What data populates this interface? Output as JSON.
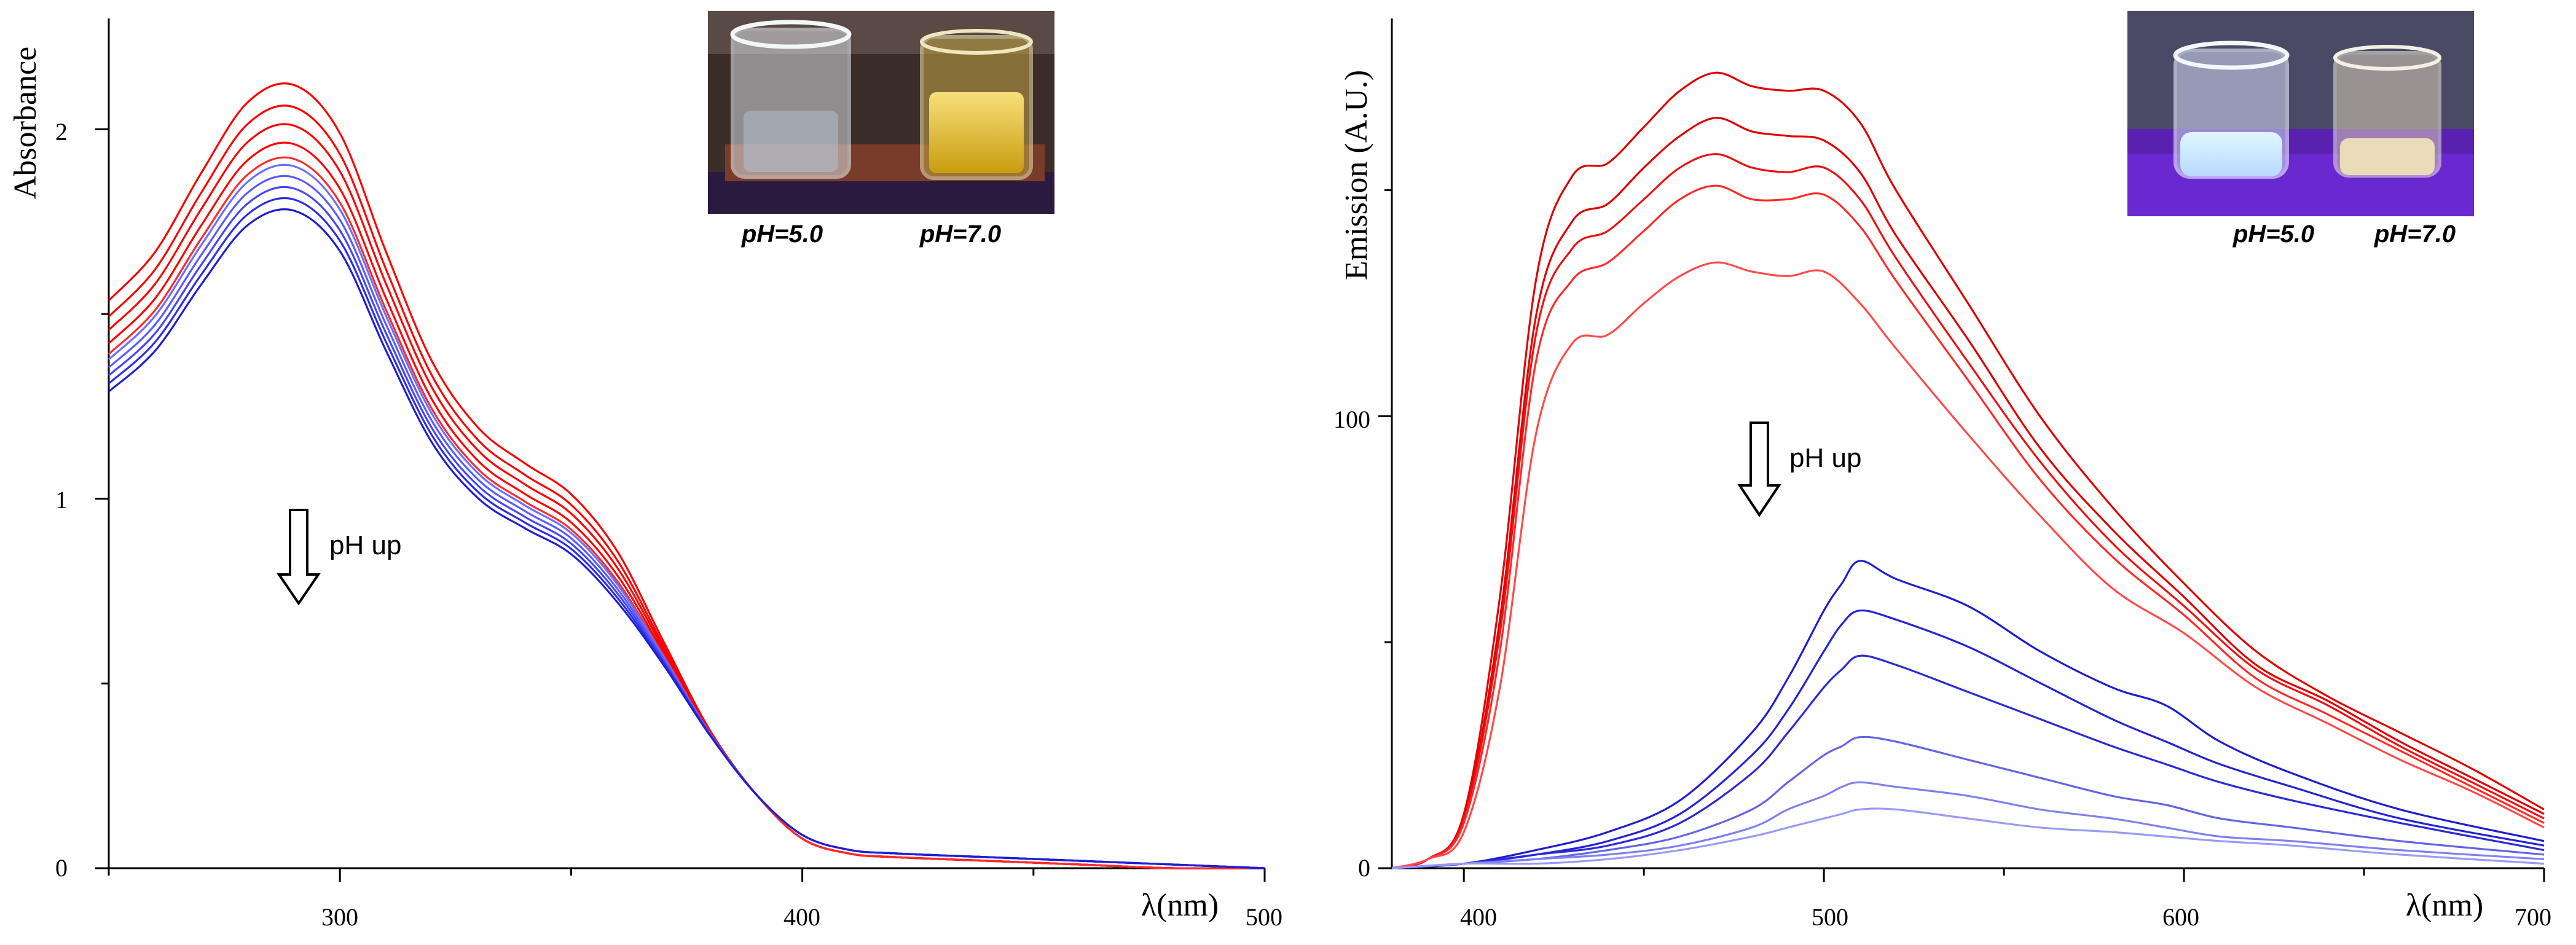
{
  "chart_data": [
    {
      "type": "line",
      "title": "",
      "xlabel": "λ(nm)",
      "ylabel": "Absorbance",
      "xlim": [
        250,
        500
      ],
      "ylim": [
        0,
        2.3
      ],
      "x_ticks": [
        "300",
        "400",
        "500"
      ],
      "y_ticks": [
        "0",
        "1",
        "2"
      ],
      "x": [
        250,
        260,
        270,
        280,
        290,
        300,
        310,
        320,
        330,
        340,
        350,
        360,
        370,
        380,
        390,
        400,
        410,
        420,
        440,
        460,
        480,
        500
      ],
      "base_values": [
        1.29,
        1.4,
        1.58,
        1.74,
        1.78,
        1.67,
        1.4,
        1.15,
        1.0,
        0.92,
        0.85,
        0.72,
        0.55,
        0.36,
        0.2,
        0.09,
        0.05,
        0.04,
        0.03,
        0.02,
        0.01,
        0.0
      ],
      "series": [
        {
          "name": "red-1",
          "color": "#ff0000",
          "offset": 0.34,
          "tail_offset": -0.01
        },
        {
          "name": "red-2",
          "color": "#ff0000",
          "offset": 0.28,
          "tail_offset": -0.01
        },
        {
          "name": "red-3",
          "color": "#ff0000",
          "offset": 0.23,
          "tail_offset": -0.01
        },
        {
          "name": "red-4",
          "color": "#ff0000",
          "offset": 0.18,
          "tail_offset": -0.01
        },
        {
          "name": "red-5",
          "color": "#ff2a2a",
          "offset": 0.14,
          "tail_offset": -0.01
        },
        {
          "name": "blue-1",
          "color": "#6e6eff",
          "offset": 0.12,
          "tail_offset": 0.0
        },
        {
          "name": "blue-2",
          "color": "#5a5aff",
          "offset": 0.09,
          "tail_offset": 0.0
        },
        {
          "name": "blue-3",
          "color": "#4646f5",
          "offset": 0.06,
          "tail_offset": 0.0
        },
        {
          "name": "blue-4",
          "color": "#2d2de6",
          "offset": 0.03,
          "tail_offset": 0.0
        },
        {
          "name": "blue-5",
          "color": "#1e1ed2",
          "offset": 0.0,
          "tail_offset": 0.0
        }
      ],
      "annotation": "pH up",
      "inset_labels": [
        "pH=5.0",
        "pH=7.0"
      ]
    },
    {
      "type": "line",
      "title": "",
      "xlabel": "λ(nm)",
      "ylabel": "Emission (A.U.)",
      "xlim": [
        380,
        700
      ],
      "ylim": [
        0,
        188
      ],
      "x_ticks": [
        "400",
        "500",
        "600",
        "700"
      ],
      "y_ticks": [
        "0",
        "100"
      ],
      "series": [
        {
          "name": "red-1",
          "color": "#e00000",
          "x": [
            380,
            390,
            400,
            410,
            420,
            430,
            440,
            450,
            460,
            470,
            480,
            490,
            500,
            510,
            520,
            540,
            560,
            580,
            600,
            620,
            640,
            660,
            680,
            700
          ],
          "values": [
            0,
            2,
            12,
            60,
            130,
            153,
            156,
            164,
            172,
            176,
            173,
            172,
            172,
            165,
            150,
            125,
            100,
            80,
            63,
            48,
            38,
            30,
            22,
            13
          ]
        },
        {
          "name": "red-2",
          "color": "#e00000",
          "x": [
            380,
            390,
            400,
            410,
            420,
            430,
            440,
            450,
            460,
            470,
            480,
            490,
            500,
            510,
            520,
            540,
            560,
            580,
            600,
            620,
            640,
            660,
            680,
            700
          ],
          "values": [
            0,
            2,
            11,
            55,
            122,
            143,
            147,
            155,
            162,
            166,
            163,
            162,
            161,
            154,
            140,
            117,
            93,
            75,
            60,
            45,
            37,
            28,
            20,
            12
          ]
        },
        {
          "name": "red-3",
          "color": "#ee1111",
          "x": [
            380,
            390,
            400,
            410,
            420,
            430,
            440,
            450,
            460,
            470,
            480,
            490,
            500,
            510,
            520,
            540,
            560,
            580,
            600,
            620,
            640,
            660,
            680,
            700
          ],
          "values": [
            0,
            2,
            11,
            52,
            118,
            137,
            141,
            148,
            155,
            158,
            155,
            154,
            155,
            148,
            135,
            112,
            90,
            72,
            58,
            44,
            36,
            27,
            19,
            11
          ]
        },
        {
          "name": "red-4",
          "color": "#ff2a2a",
          "x": [
            380,
            390,
            400,
            410,
            420,
            430,
            440,
            450,
            460,
            470,
            480,
            490,
            500,
            510,
            520,
            540,
            560,
            580,
            600,
            620,
            640,
            660,
            680,
            700
          ],
          "values": [
            0,
            2,
            10,
            48,
            112,
            130,
            134,
            141,
            148,
            151,
            148,
            148,
            149,
            142,
            130,
            108,
            86,
            69,
            56,
            42,
            34,
            26,
            18,
            10
          ]
        },
        {
          "name": "red-5",
          "color": "#ff4a4a",
          "x": [
            380,
            390,
            400,
            410,
            420,
            430,
            440,
            450,
            460,
            470,
            480,
            490,
            500,
            510,
            520,
            540,
            560,
            580,
            600,
            620,
            640,
            660,
            680,
            700
          ],
          "values": [
            0,
            2,
            8,
            40,
            96,
            116,
            118,
            125,
            131,
            134,
            132,
            131,
            132,
            125,
            115,
            96,
            78,
            62,
            52,
            40,
            32,
            24,
            17,
            9
          ]
        },
        {
          "name": "blue-1",
          "color": "#1e1ecf",
          "x": [
            380,
            400,
            420,
            440,
            460,
            480,
            490,
            500,
            505,
            510,
            520,
            540,
            560,
            580,
            595,
            610,
            630,
            660,
            700
          ],
          "values": [
            0,
            1,
            4,
            8,
            15,
            30,
            42,
            57,
            63,
            68,
            64,
            58,
            48,
            40,
            36,
            28,
            21,
            13,
            6
          ]
        },
        {
          "name": "blue-2",
          "color": "#2323d6",
          "x": [
            380,
            400,
            420,
            440,
            460,
            480,
            490,
            500,
            505,
            510,
            520,
            540,
            560,
            580,
            595,
            610,
            630,
            660,
            700
          ],
          "values": [
            0,
            1,
            3,
            6,
            12,
            25,
            35,
            48,
            54,
            57,
            55,
            49,
            41,
            33,
            28,
            23,
            18,
            11,
            5
          ]
        },
        {
          "name": "blue-3",
          "color": "#2a2ad9",
          "x": [
            380,
            400,
            420,
            440,
            460,
            480,
            490,
            500,
            505,
            510,
            520,
            540,
            560,
            580,
            595,
            610,
            630,
            660,
            700
          ],
          "values": [
            0,
            1,
            3,
            5,
            10,
            21,
            30,
            40,
            44,
            47,
            45,
            39,
            33,
            27,
            23,
            19,
            15,
            10,
            4
          ]
        },
        {
          "name": "blue-4",
          "color": "#6464e6",
          "x": [
            380,
            400,
            420,
            440,
            460,
            480,
            490,
            500,
            505,
            510,
            520,
            540,
            560,
            580,
            595,
            610,
            630,
            660,
            700
          ],
          "values": [
            0,
            1,
            2,
            4,
            7,
            13,
            19,
            25,
            27,
            29,
            28,
            24,
            20,
            16,
            14,
            11,
            9,
            6,
            3
          ]
        },
        {
          "name": "blue-5",
          "color": "#8080f0",
          "x": [
            380,
            400,
            420,
            440,
            460,
            480,
            490,
            500,
            505,
            510,
            520,
            540,
            560,
            580,
            595,
            610,
            630,
            660,
            700
          ],
          "values": [
            0,
            1,
            2,
            3,
            5,
            9,
            13,
            16,
            18,
            19,
            18,
            16,
            13,
            11,
            9,
            7,
            6,
            4,
            2
          ]
        },
        {
          "name": "blue-6",
          "color": "#9a9af5",
          "x": [
            380,
            400,
            420,
            440,
            460,
            480,
            490,
            500,
            505,
            510,
            520,
            540,
            560,
            580,
            595,
            610,
            630,
            660,
            700
          ],
          "values": [
            0,
            1,
            1,
            2,
            4,
            7,
            9,
            11,
            12,
            13,
            13,
            11,
            9,
            8,
            7,
            6,
            5,
            3,
            1
          ]
        }
      ],
      "annotation": "pH up",
      "inset_labels": [
        "pH=5.0",
        "pH=7.0"
      ]
    }
  ]
}
